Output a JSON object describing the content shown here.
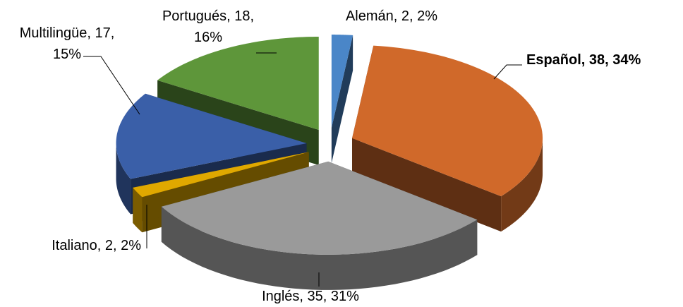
{
  "chart_data": {
    "type": "pie3d",
    "categories": [
      "Alemán",
      "Español",
      "Inglés",
      "Italiano",
      "Multilingüe",
      "Portugués"
    ],
    "values": [
      2,
      38,
      35,
      2,
      17,
      18
    ],
    "value_labels": [
      "Alemán, 2, 2%",
      "Español, 38, 34%",
      "Inglés, 35, 31%",
      "Italiano, 2, 2%",
      "Multilingüe, 17, 15%",
      "Portugués, 18, 16%"
    ],
    "colors": [
      "#4a86c8",
      "#d0692a",
      "#9a9a9a",
      "#e0a800",
      "#3a5fa8",
      "#5e963a"
    ],
    "exploded": true
  }
}
